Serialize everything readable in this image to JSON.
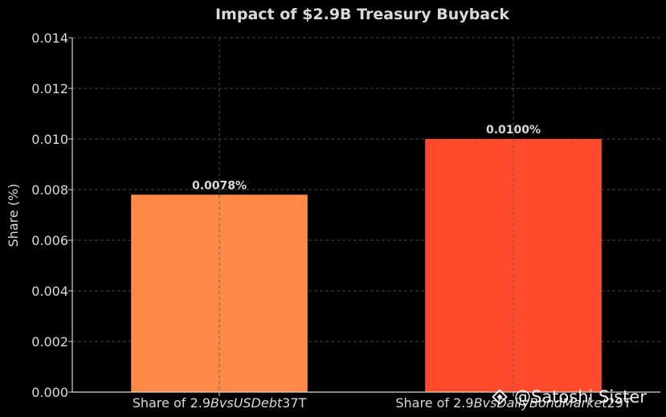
{
  "chart_data": {
    "type": "bar",
    "title": "Impact of $2.9B Treasury Buyback",
    "xlabel": "",
    "ylabel": "Share (%)",
    "ylim": [
      0,
      0.014
    ],
    "yticks": [
      "0.000",
      "0.002",
      "0.004",
      "0.006",
      "0.008",
      "0.010",
      "0.012",
      "0.014"
    ],
    "grid": true,
    "legend": "none",
    "categories": [
      {
        "pre": "Share of 2.9",
        "ital": "BvsUSDebt",
        "post": "37T"
      },
      {
        "pre": "Share of 2.9",
        "ital": "BvsDailyBondMarket",
        "post": "29T"
      }
    ],
    "values": [
      0.0078,
      0.01
    ],
    "value_labels": [
      "0.0078%",
      "0.0100%"
    ],
    "colors": [
      "#FF8A47",
      "#FF4B2B"
    ],
    "background": "#000000",
    "text_color": "#D9D9D9"
  },
  "watermark": {
    "text": "@Satoshi Sister",
    "logo_icon": "binance-logo-icon"
  }
}
